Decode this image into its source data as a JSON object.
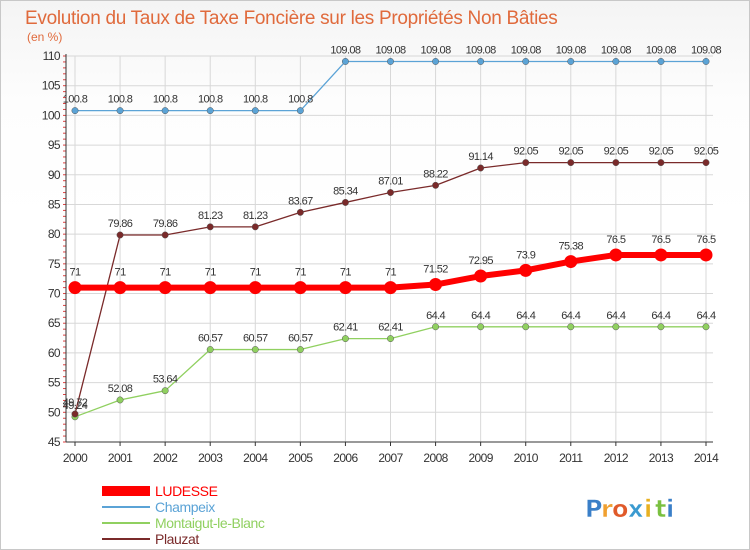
{
  "chart_data": {
    "type": "line",
    "title": "Evolution du Taux de Taxe Foncière sur les Propriétés Non Bâties",
    "unit_label": "(en %)",
    "x": [
      "2000",
      "2001",
      "2002",
      "2003",
      "2004",
      "2005",
      "2006",
      "2007",
      "2008",
      "2009",
      "2010",
      "2011",
      "2012",
      "2013",
      "2014"
    ],
    "ylim": [
      45,
      110
    ],
    "yticks": [
      "45",
      "50",
      "55",
      "60",
      "65",
      "70",
      "75",
      "80",
      "85",
      "90",
      "95",
      "100",
      "105",
      "110"
    ],
    "grid": true,
    "legend_position": "bottom-left",
    "series": [
      {
        "name": "LUDESSE",
        "color": "#ff0000",
        "values": [
          71,
          71,
          71,
          71,
          71,
          71,
          71,
          71,
          71.52,
          72.95,
          73.9,
          75.38,
          76.5,
          76.5,
          76.5
        ],
        "labels": [
          "71",
          "71",
          "71",
          "71",
          "71",
          "71",
          "71",
          "71",
          "71.52",
          "72.95",
          "73.9",
          "75.38",
          "76.5",
          "76.5",
          "76.5"
        ]
      },
      {
        "name": "Champeix",
        "color": "#5ba3d6",
        "values": [
          100.8,
          100.8,
          100.8,
          100.8,
          100.8,
          100.8,
          109.08,
          109.08,
          109.08,
          109.08,
          109.08,
          109.08,
          109.08,
          109.08,
          109.08
        ],
        "labels": [
          "100.8",
          "100.8",
          "100.8",
          "100.8",
          "100.8",
          "100.8",
          "109.08",
          "109.08",
          "109.08",
          "109.08",
          "109.08",
          "109.08",
          "109.08",
          "109.08",
          "109.08"
        ]
      },
      {
        "name": "Montaigut-le-Blanc",
        "color": "#90d060",
        "values": [
          49.24,
          52.08,
          53.64,
          60.57,
          60.57,
          60.57,
          62.41,
          62.41,
          64.4,
          64.4,
          64.4,
          64.4,
          64.4,
          64.4,
          64.4
        ],
        "labels": [
          "49.24",
          "52.08",
          "53.64",
          "60.57",
          "60.57",
          "60.57",
          "62.41",
          "62.41",
          "64.4",
          "64.4",
          "64.4",
          "64.4",
          "64.4",
          "64.4",
          "64.4"
        ]
      },
      {
        "name": "Plauzat",
        "color": "#7a2a2a",
        "values": [
          49.72,
          79.86,
          79.86,
          81.23,
          81.23,
          83.67,
          85.34,
          87.01,
          88.22,
          91.14,
          92.05,
          92.05,
          92.05,
          92.05,
          92.05
        ],
        "labels": [
          "49.72",
          "79.86",
          "79.86",
          "81.23",
          "81.23",
          "83.67",
          "85.34",
          "87.01",
          "88.22",
          "91.14",
          "92.05",
          "92.05",
          "92.05",
          "92.05",
          "92.05"
        ]
      }
    ]
  },
  "logo": {
    "text": "Proxiti",
    "letters": [
      "P",
      "r",
      "o",
      "x",
      "i",
      "t",
      "i"
    ],
    "colors": [
      "#3a7fc8",
      "#f0a030",
      "#e05a2a",
      "#3a9ad0",
      "#e8b020",
      "#7ac040",
      "#3a7fc8"
    ]
  }
}
